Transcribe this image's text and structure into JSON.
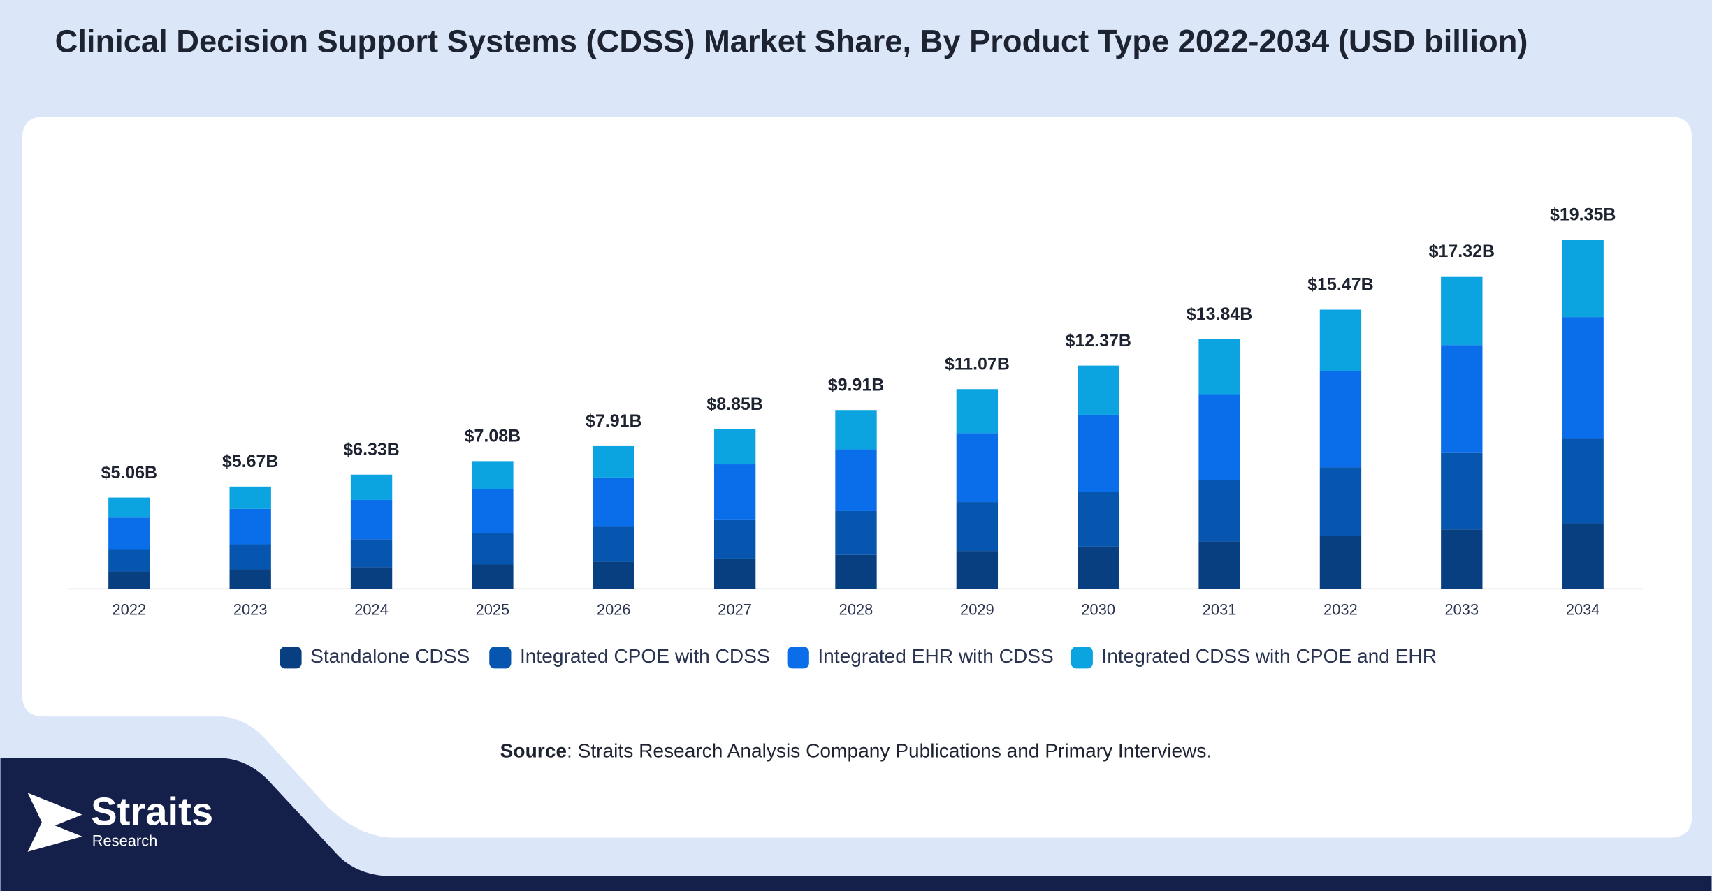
{
  "chart_data": {
    "type": "stacked_bar",
    "title": "Clinical Decision Support Systems (CDSS) Market Share, By Product Type 2022-2034 (USD billion)",
    "categories": [
      "2022",
      "2023",
      "2024",
      "2025",
      "2026",
      "2027",
      "2028",
      "2029",
      "2030",
      "2031",
      "2032",
      "2033",
      "2034"
    ],
    "series": [
      {
        "name": "Standalone CDSS",
        "color": "#073f80",
        "values": [
          0.96,
          1.08,
          1.2,
          1.35,
          1.5,
          1.68,
          1.88,
          2.1,
          2.35,
          2.63,
          2.94,
          3.29,
          3.63
        ]
      },
      {
        "name": "Integrated CPOE with CDSS",
        "color": "#0655ae",
        "values": [
          1.24,
          1.39,
          1.55,
          1.73,
          1.94,
          2.17,
          2.43,
          2.71,
          3.03,
          3.39,
          3.79,
          4.24,
          4.72
        ]
      },
      {
        "name": "Integrated EHR with CDSS",
        "color": "#0a6eea",
        "values": [
          1.75,
          1.96,
          2.18,
          2.44,
          2.73,
          3.05,
          3.42,
          3.82,
          4.27,
          4.77,
          5.34,
          5.98,
          6.71
        ]
      },
      {
        "name": "Integrated CDSS with CPOE and EHR",
        "color": "#0ba3e0",
        "values": [
          1.11,
          1.24,
          1.4,
          1.56,
          1.74,
          1.95,
          2.18,
          2.44,
          2.72,
          3.05,
          3.4,
          3.81,
          4.29
        ]
      }
    ],
    "totals": {
      "values": [
        5.06,
        5.67,
        6.33,
        7.08,
        7.91,
        8.85,
        9.91,
        11.07,
        12.37,
        13.84,
        15.47,
        17.32,
        19.35
      ],
      "value_labels": [
        "$5.06B",
        "$5.67B",
        "$6.33B",
        "$7.08B",
        "$7.91B",
        "$8.85B",
        "$9.91B",
        "$11.07B",
        "$12.37B",
        "$13.84B",
        "$15.47B",
        "$17.32B",
        "$19.35B"
      ]
    },
    "ylim": [
      0,
      20
    ],
    "grid": false
  },
  "source_label": "Source",
  "source_text": ": Straits Research Analysis Company Publications and Primary Interviews.",
  "logo": {
    "name": "Straits",
    "subtitle": "Research"
  }
}
